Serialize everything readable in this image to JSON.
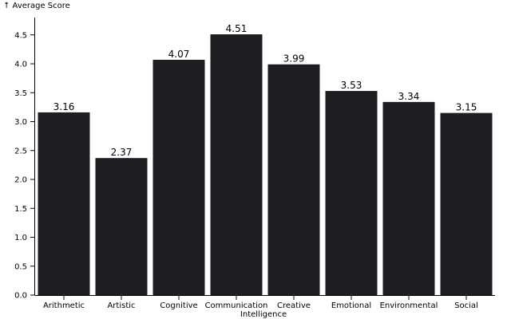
{
  "chart_data": {
    "type": "bar",
    "categories": [
      "Arithmetic",
      "Artistic",
      "Cognitive",
      "Communication",
      "Creative",
      "Emotional",
      "Environmental",
      "Social"
    ],
    "values": [
      3.16,
      2.37,
      4.07,
      4.51,
      3.99,
      3.53,
      3.34,
      3.15
    ],
    "value_labels": [
      "3.16",
      "2.37",
      "4.07",
      "4.51",
      "3.99",
      "3.53",
      "3.34",
      "3.15"
    ],
    "ylabel": "↑ Average Score",
    "xlabel": "Intelligence",
    "ylim": [
      0,
      4.8
    ],
    "yticks": [
      0,
      0.5,
      1,
      1.5,
      2,
      2.5,
      3,
      3.5,
      4,
      4.5
    ],
    "ytick_labels": [
      "0.0",
      "0.5",
      "1.0",
      "1.5",
      "2.0",
      "2.5",
      "3.0",
      "3.5",
      "4.0",
      "4.5"
    ],
    "grid": false,
    "bar_color": "#1c1e22"
  }
}
